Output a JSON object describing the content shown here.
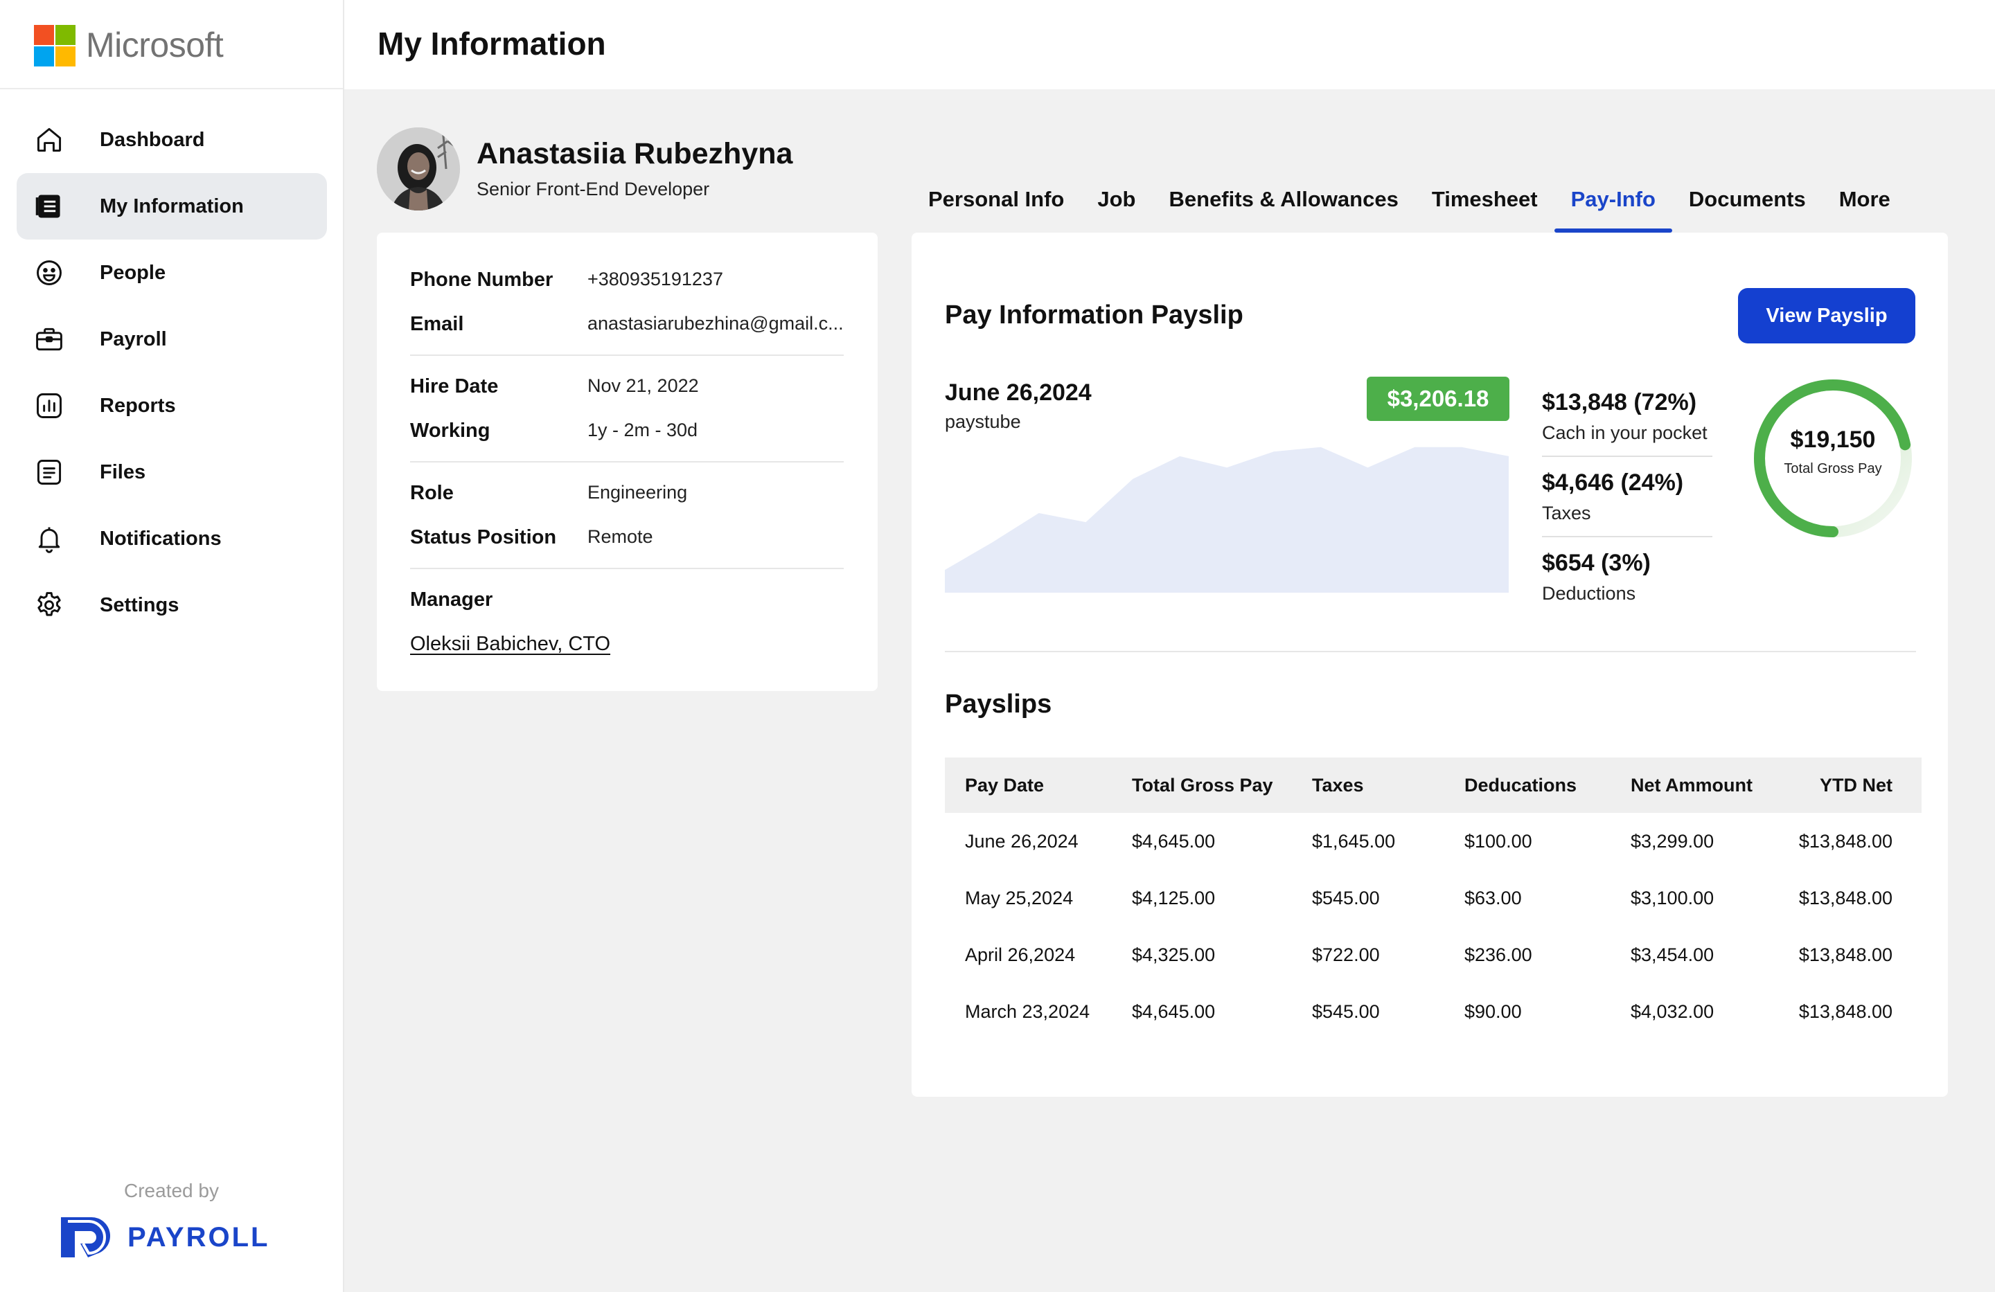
{
  "brand": {
    "name": "Microsoft",
    "logo_colors": [
      "#f25022",
      "#7fba00",
      "#00a4ef",
      "#ffb900"
    ]
  },
  "sidebar": {
    "items": [
      {
        "label": "Dashboard",
        "icon": "home-icon"
      },
      {
        "label": "My Information",
        "icon": "id-card-icon",
        "active": true
      },
      {
        "label": "People",
        "icon": "smiley-icon"
      },
      {
        "label": "Payroll",
        "icon": "briefcase-icon"
      },
      {
        "label": "Reports",
        "icon": "bar-chart-icon"
      },
      {
        "label": "Files",
        "icon": "file-icon"
      },
      {
        "label": "Notifications",
        "icon": "bell-icon"
      },
      {
        "label": "Settings",
        "icon": "gear-icon"
      }
    ],
    "created_by": "Created by",
    "payroll_brand": "PAYROLL"
  },
  "header": {
    "title": "My Information"
  },
  "profile": {
    "name": "Anastasiia Rubezhyna",
    "role": "Senior Front-End Developer"
  },
  "tabs": [
    {
      "label": "Personal Info"
    },
    {
      "label": "Job"
    },
    {
      "label": "Benefits & Allowances"
    },
    {
      "label": "Timesheet"
    },
    {
      "label": "Pay-Info",
      "active": true
    },
    {
      "label": "Documents"
    },
    {
      "label": "More"
    }
  ],
  "info": {
    "phone_label": "Phone Number",
    "phone": "+380935191237",
    "email_label": "Email",
    "email": "anastasiarubezhina@gmail.c...",
    "hire_label": "Hire Date",
    "hire": "Nov 21, 2022",
    "working_label": "Working",
    "working": "1y - 2m - 30d",
    "role_label": "Role",
    "role": "Engineering",
    "status_label": "Status Position",
    "status": "Remote",
    "manager_label": "Manager",
    "manager": "Oleksii Babichev, CTO"
  },
  "pay": {
    "title": "Pay Information Payslip",
    "view_button": "View Payslip",
    "date": "June 26,2024",
    "date_sub": "paystube",
    "net_badge": "$3,206.18",
    "accent_color": "#1440d0",
    "badge_color": "#4daf4a",
    "stats": [
      {
        "value": "$13,848 (72%)",
        "label": "Cach in your pocket"
      },
      {
        "value": "$4,646 (24%)",
        "label": "Taxes"
      },
      {
        "value": "$654 (3%)",
        "label": "Deductions"
      }
    ],
    "gauge": {
      "value": "$19,150",
      "label": "Total Gross Pay",
      "fraction": 0.72
    }
  },
  "chart_data": {
    "type": "area",
    "y": [
      10,
      22,
      35,
      31,
      50,
      60,
      55,
      62,
      64,
      55,
      64,
      64,
      60
    ],
    "ylim": [
      0,
      70
    ],
    "color": "#e6ebf8"
  },
  "payslips": {
    "title": "Payslips",
    "columns": [
      "Pay Date",
      "Total Gross Pay",
      "Taxes",
      "Deducations",
      "Net Ammount",
      "YTD Net"
    ],
    "rows": [
      [
        "June 26,2024",
        "$4,645.00",
        "$1,645.00",
        "$100.00",
        "$3,299.00",
        "$13,848.00"
      ],
      [
        "May 25,2024",
        "$4,125.00",
        "$545.00",
        "$63.00",
        "$3,100.00",
        "$13,848.00"
      ],
      [
        "April 26,2024",
        "$4,325.00",
        "$722.00",
        "$236.00",
        "$3,454.00",
        "$13,848.00"
      ],
      [
        "March 23,2024",
        "$4,645.00",
        "$545.00",
        "$90.00",
        "$4,032.00",
        "$13,848.00"
      ]
    ]
  }
}
